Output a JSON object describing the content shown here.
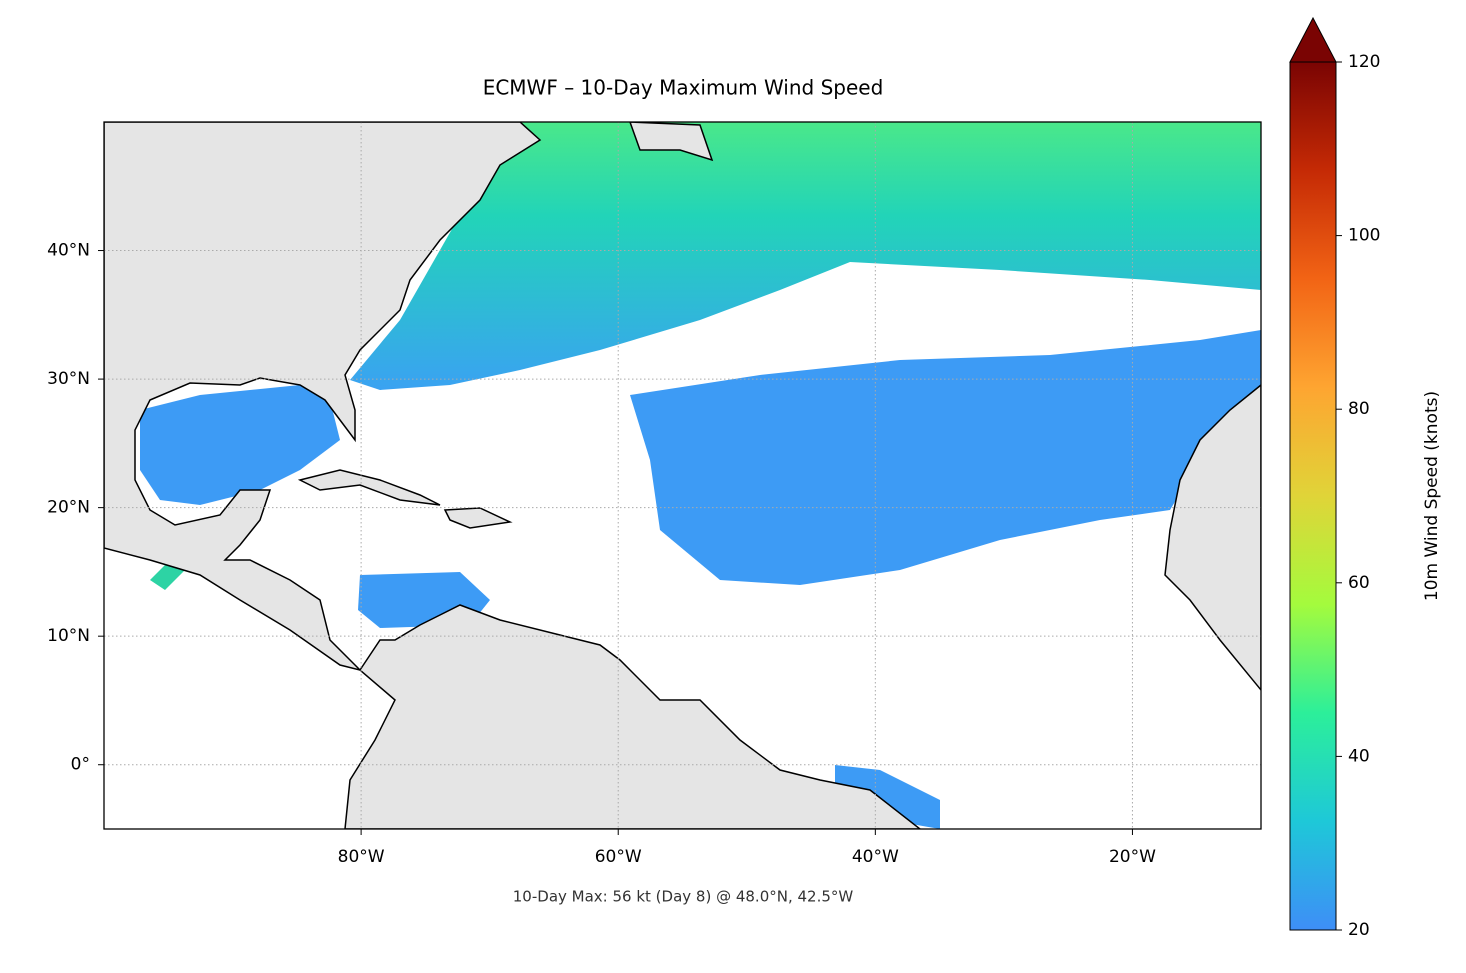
{
  "chart_data": {
    "type": "map",
    "title": "ECMWF – 10-Day Maximum Wind Speed",
    "annotation": "10-Day Max: 56 kt (Day 8) @ 48.0°N, 42.5°W",
    "xlim": [
      -100,
      -10
    ],
    "ylim": [
      -5,
      50
    ],
    "xticks": [
      {
        "value": -80,
        "label": "80°W"
      },
      {
        "value": -60,
        "label": "60°W"
      },
      {
        "value": -40,
        "label": "40°W"
      },
      {
        "value": -20,
        "label": "20°W"
      }
    ],
    "yticks": [
      {
        "value": 0,
        "label": "0°"
      },
      {
        "value": 10,
        "label": "10°N"
      },
      {
        "value": 20,
        "label": "20°N"
      },
      {
        "value": 30,
        "label": "30°N"
      },
      {
        "value": 40,
        "label": "40°N"
      }
    ],
    "grid": true,
    "colorbar": {
      "label": "10m Wind Speed (knots)",
      "lim": [
        20,
        120
      ],
      "ticks": [
        20,
        40,
        60,
        80,
        100,
        120
      ],
      "extend": "max",
      "colors": [
        "#3e8ef7",
        "#1ec8d8",
        "#2cef9a",
        "#a4fb3d",
        "#e0d438",
        "#fea531",
        "#f26415",
        "#c52a05",
        "#7a0403"
      ]
    }
  }
}
